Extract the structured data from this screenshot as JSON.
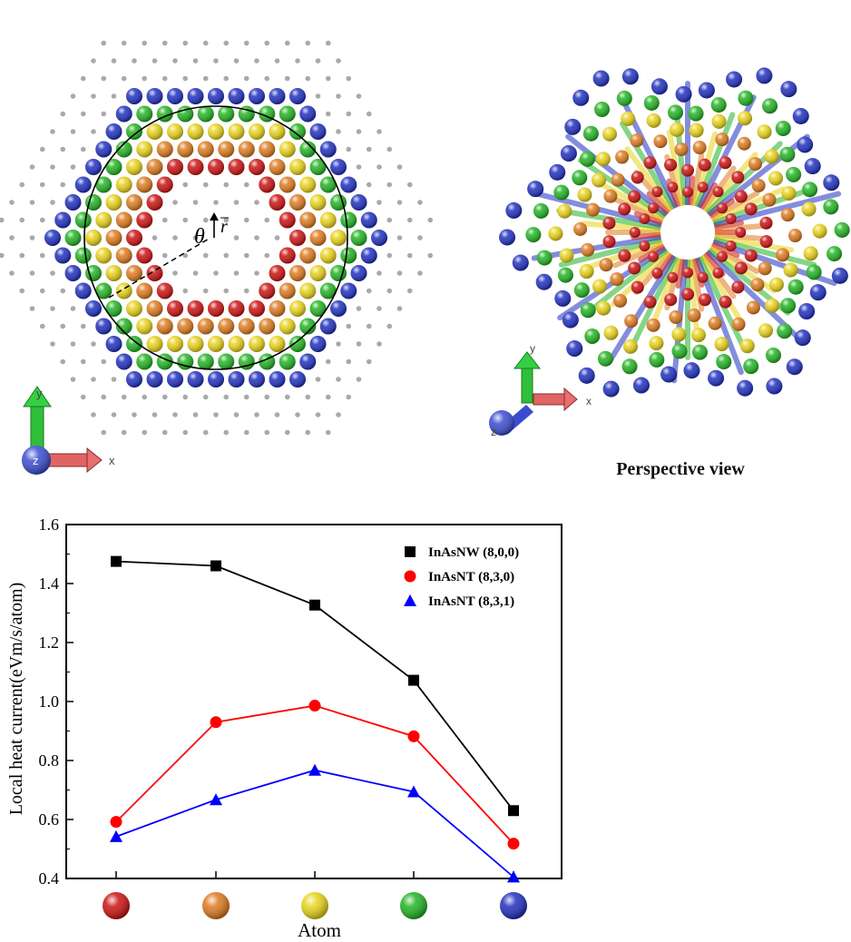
{
  "figure": {
    "caption_perspective": "Perspective view",
    "axis_x_label": "x",
    "axis_y_label": "y",
    "axis_z_label": "z",
    "theta_label": "θ",
    "r_label": "r",
    "atom_colors": [
      "#cc1111",
      "#dd7a1e",
      "#e8d21a",
      "#22b322",
      "#1f2fbf"
    ],
    "grid_dot_color": "#a9a9a9"
  },
  "chart_data": {
    "type": "line",
    "title": "",
    "xlabel": "Atom",
    "ylabel": "Local heat current(eVm/s/atom)",
    "ylim": [
      0.4,
      1.6
    ],
    "yticks": [
      "0.4",
      "0.6",
      "0.8",
      "1.0",
      "1.2",
      "1.4",
      "1.6"
    ],
    "categories": [
      "red atom",
      "orange atom",
      "yellow atom",
      "green atom",
      "blue atom"
    ],
    "category_colors": [
      "#cc1111",
      "#dd7a1e",
      "#e8d21a",
      "#22b322",
      "#1f2fbf"
    ],
    "legend_position": "top-right",
    "series": [
      {
        "name": "InAsNW (8,0,0)",
        "color": "#000000",
        "marker": "square",
        "values": [
          1.475,
          1.46,
          1.327,
          1.072,
          0.63
        ]
      },
      {
        "name": "InAsNT (8,3,0)",
        "color": "#ff0000",
        "marker": "circle",
        "values": [
          0.592,
          0.93,
          0.986,
          0.882,
          0.518
        ]
      },
      {
        "name": "InAsNT (8,3,1)",
        "color": "#0000ff",
        "marker": "triangle",
        "values": [
          0.542,
          0.667,
          0.767,
          0.694,
          0.405
        ]
      }
    ]
  }
}
